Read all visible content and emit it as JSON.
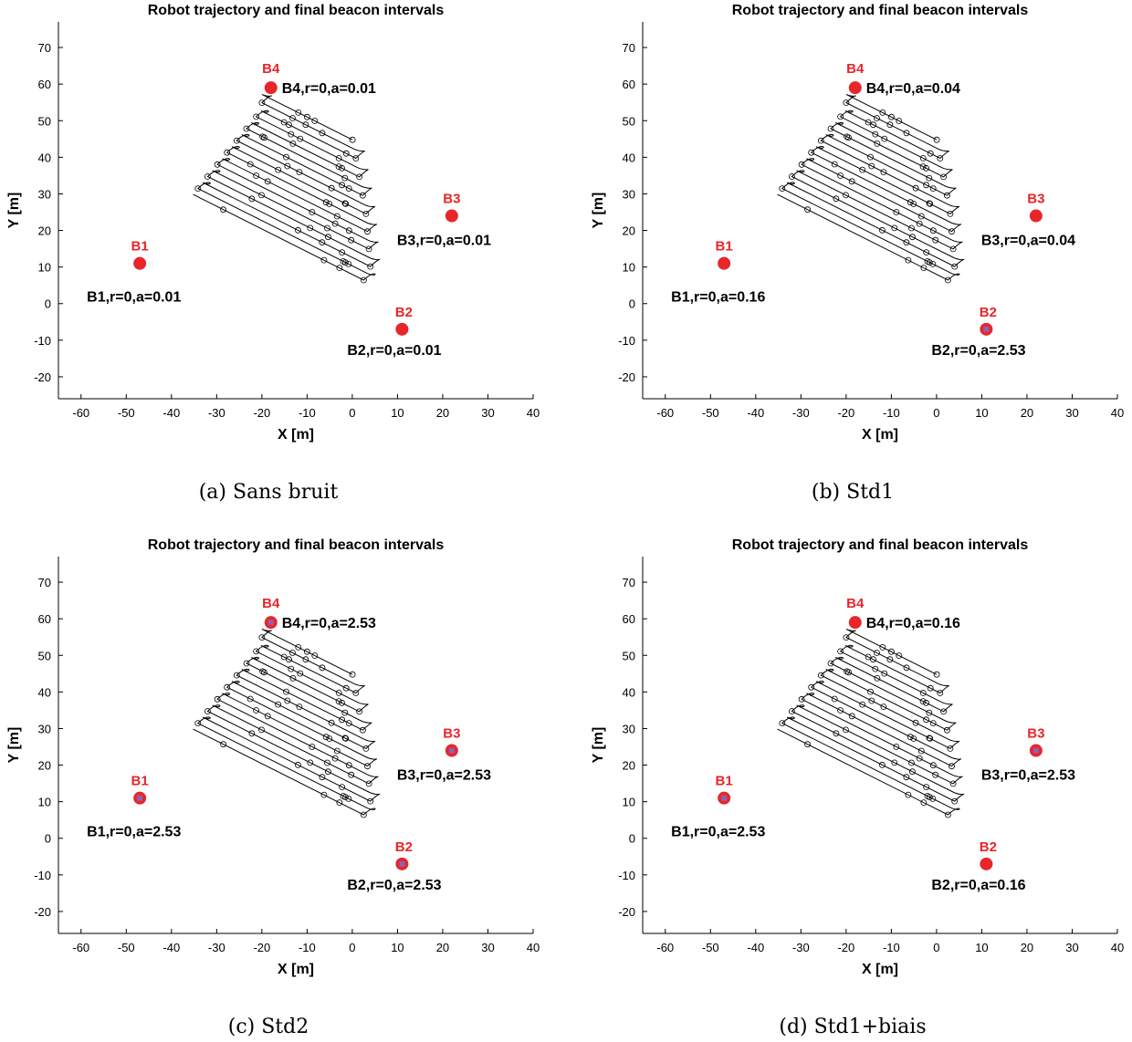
{
  "chart_data": [
    {
      "type": "scatter",
      "title": "Robot trajectory and final beacon intervals",
      "xlabel": "X [m]",
      "ylabel": "Y [m]",
      "xlim": [
        -65,
        40
      ],
      "ylim": [
        -26,
        77
      ],
      "xticks": [
        -60,
        -50,
        -40,
        -30,
        -20,
        -10,
        0,
        10,
        20,
        30,
        40
      ],
      "yticks": [
        -20,
        -10,
        0,
        10,
        20,
        30,
        40,
        50,
        60,
        70
      ],
      "grid": false,
      "caption": "(a) Sans bruit",
      "beacons": [
        {
          "name": "B1",
          "x": -47,
          "y": 11,
          "info": "B1,r=0,a=0.01"
        },
        {
          "name": "B2",
          "x": 11,
          "y": -7,
          "info": "B2,r=0,a=0.01"
        },
        {
          "name": "B3",
          "x": 22,
          "y": 24,
          "info": "B3,r=0,a=0.01"
        },
        {
          "name": "B4",
          "x": -18,
          "y": 59,
          "info": "B4,r=0,a=0.01"
        }
      ]
    },
    {
      "type": "scatter",
      "title": "Robot trajectory and final beacon intervals",
      "xlabel": "X [m]",
      "ylabel": "Y [m]",
      "xlim": [
        -65,
        40
      ],
      "ylim": [
        -26,
        77
      ],
      "xticks": [
        -60,
        -50,
        -40,
        -30,
        -20,
        -10,
        0,
        10,
        20,
        30,
        40
      ],
      "yticks": [
        -20,
        -10,
        0,
        10,
        20,
        30,
        40,
        50,
        60,
        70
      ],
      "grid": false,
      "caption": "(b) Std1",
      "beacons": [
        {
          "name": "B1",
          "x": -47,
          "y": 11,
          "info": "B1,r=0,a=0.16"
        },
        {
          "name": "B2",
          "x": 11,
          "y": -7,
          "info": "B2,r=0,a=2.53"
        },
        {
          "name": "B3",
          "x": 22,
          "y": 24,
          "info": "B3,r=0,a=0.04"
        },
        {
          "name": "B4",
          "x": -18,
          "y": 59,
          "info": "B4,r=0,a=0.04"
        }
      ]
    },
    {
      "type": "scatter",
      "title": "Robot trajectory and final beacon intervals",
      "xlabel": "X [m]",
      "ylabel": "Y [m]",
      "xlim": [
        -65,
        40
      ],
      "ylim": [
        -26,
        77
      ],
      "xticks": [
        -60,
        -50,
        -40,
        -30,
        -20,
        -10,
        0,
        10,
        20,
        30,
        40
      ],
      "yticks": [
        -20,
        -10,
        0,
        10,
        20,
        30,
        40,
        50,
        60,
        70
      ],
      "grid": false,
      "caption": "(c) Std2",
      "beacons": [
        {
          "name": "B1",
          "x": -47,
          "y": 11,
          "info": "B1,r=0,a=2.53"
        },
        {
          "name": "B2",
          "x": 11,
          "y": -7,
          "info": "B2,r=0,a=2.53"
        },
        {
          "name": "B3",
          "x": 22,
          "y": 24,
          "info": "B3,r=0,a=2.53"
        },
        {
          "name": "B4",
          "x": -18,
          "y": 59,
          "info": "B4,r=0,a=2.53"
        }
      ]
    },
    {
      "type": "scatter",
      "title": "Robot trajectory and final beacon intervals",
      "xlabel": "X [m]",
      "ylabel": "Y [m]",
      "xlim": [
        -65,
        40
      ],
      "ylim": [
        -26,
        77
      ],
      "xticks": [
        -60,
        -50,
        -40,
        -30,
        -20,
        -10,
        0,
        10,
        20,
        30,
        40
      ],
      "yticks": [
        -20,
        -10,
        0,
        10,
        20,
        30,
        40,
        50,
        60,
        70
      ],
      "grid": false,
      "caption": "(d) Std1+biais",
      "beacons": [
        {
          "name": "B1",
          "x": -47,
          "y": 11,
          "info": "B1,r=0,a=2.53"
        },
        {
          "name": "B2",
          "x": 11,
          "y": -7,
          "info": "B2,r=0,a=0.16"
        },
        {
          "name": "B3",
          "x": 22,
          "y": 24,
          "info": "B3,r=0,a=2.53"
        },
        {
          "name": "B4",
          "x": -18,
          "y": 59,
          "info": "B4,r=0,a=0.16"
        }
      ]
    }
  ],
  "colors": {
    "beacon": "#e8262a",
    "beacon_label": "#e8262a",
    "interval_box": "#7a6fd0",
    "trajectory": "#000000"
  }
}
